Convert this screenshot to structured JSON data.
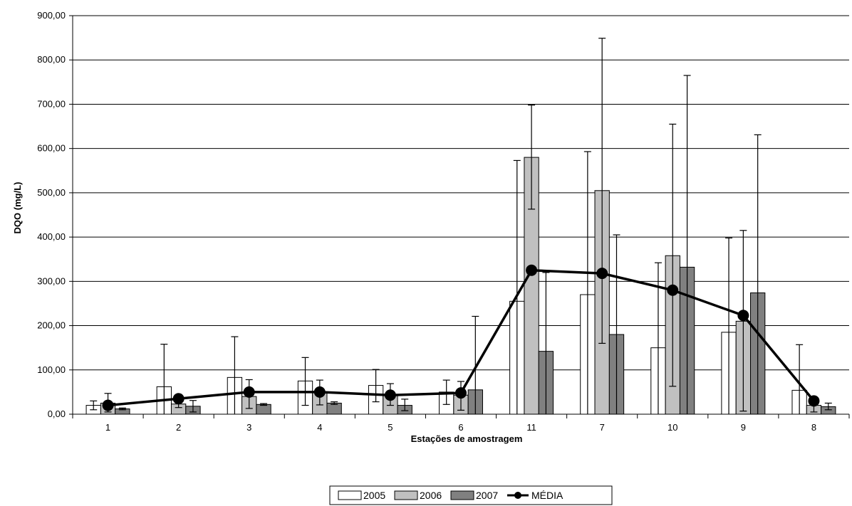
{
  "chart_data": {
    "type": "bar",
    "xlabel": "Estações de amostragem",
    "ylabel": "DQO (mg/L)",
    "ylim": [
      0,
      900
    ],
    "yticks": [
      "0,00",
      "100,00",
      "200,00",
      "300,00",
      "400,00",
      "500,00",
      "600,00",
      "700,00",
      "800,00",
      "900,00"
    ],
    "grid": true,
    "legend_position": "bottom",
    "categories": [
      "1",
      "2",
      "3",
      "4",
      "5",
      "6",
      "11",
      "7",
      "10",
      "9",
      "8"
    ],
    "series": [
      {
        "name": "2005",
        "color": "#ffffff",
        "values": [
          20,
          62,
          83,
          75,
          65,
          50,
          255,
          270,
          150,
          185,
          54
        ],
        "error_upper": [
          30,
          158,
          175,
          128,
          101,
          77,
          573,
          593,
          342,
          398,
          157
        ],
        "error_lower": [
          10,
          0,
          0,
          20,
          28,
          22,
          0,
          0,
          0,
          0,
          0
        ]
      },
      {
        "name": "2006",
        "color": "#c0c0c0",
        "values": [
          25,
          23,
          40,
          50,
          44,
          43,
          580,
          505,
          358,
          210,
          20
        ],
        "error_upper": [
          47,
          30,
          78,
          77,
          69,
          74,
          698,
          849,
          655,
          415,
          28
        ],
        "error_lower": [
          5,
          15,
          13,
          21,
          20,
          9,
          463,
          160,
          63,
          7,
          5
        ]
      },
      {
        "name": "2007",
        "color": "#808080",
        "values": [
          12,
          18,
          22,
          25,
          20,
          55,
          142,
          180,
          332,
          274,
          17
        ],
        "error_upper": [
          14,
          31,
          24,
          28,
          34,
          221,
          320,
          405,
          765,
          631,
          25
        ],
        "error_lower": [
          10,
          5,
          20,
          22,
          8,
          0,
          0,
          0,
          0,
          0,
          10
        ]
      },
      {
        "name": "MÉDIA",
        "type": "line",
        "color": "#000000",
        "values": [
          20,
          35,
          50,
          50,
          43,
          48,
          325,
          318,
          280,
          223,
          30
        ]
      }
    ]
  }
}
